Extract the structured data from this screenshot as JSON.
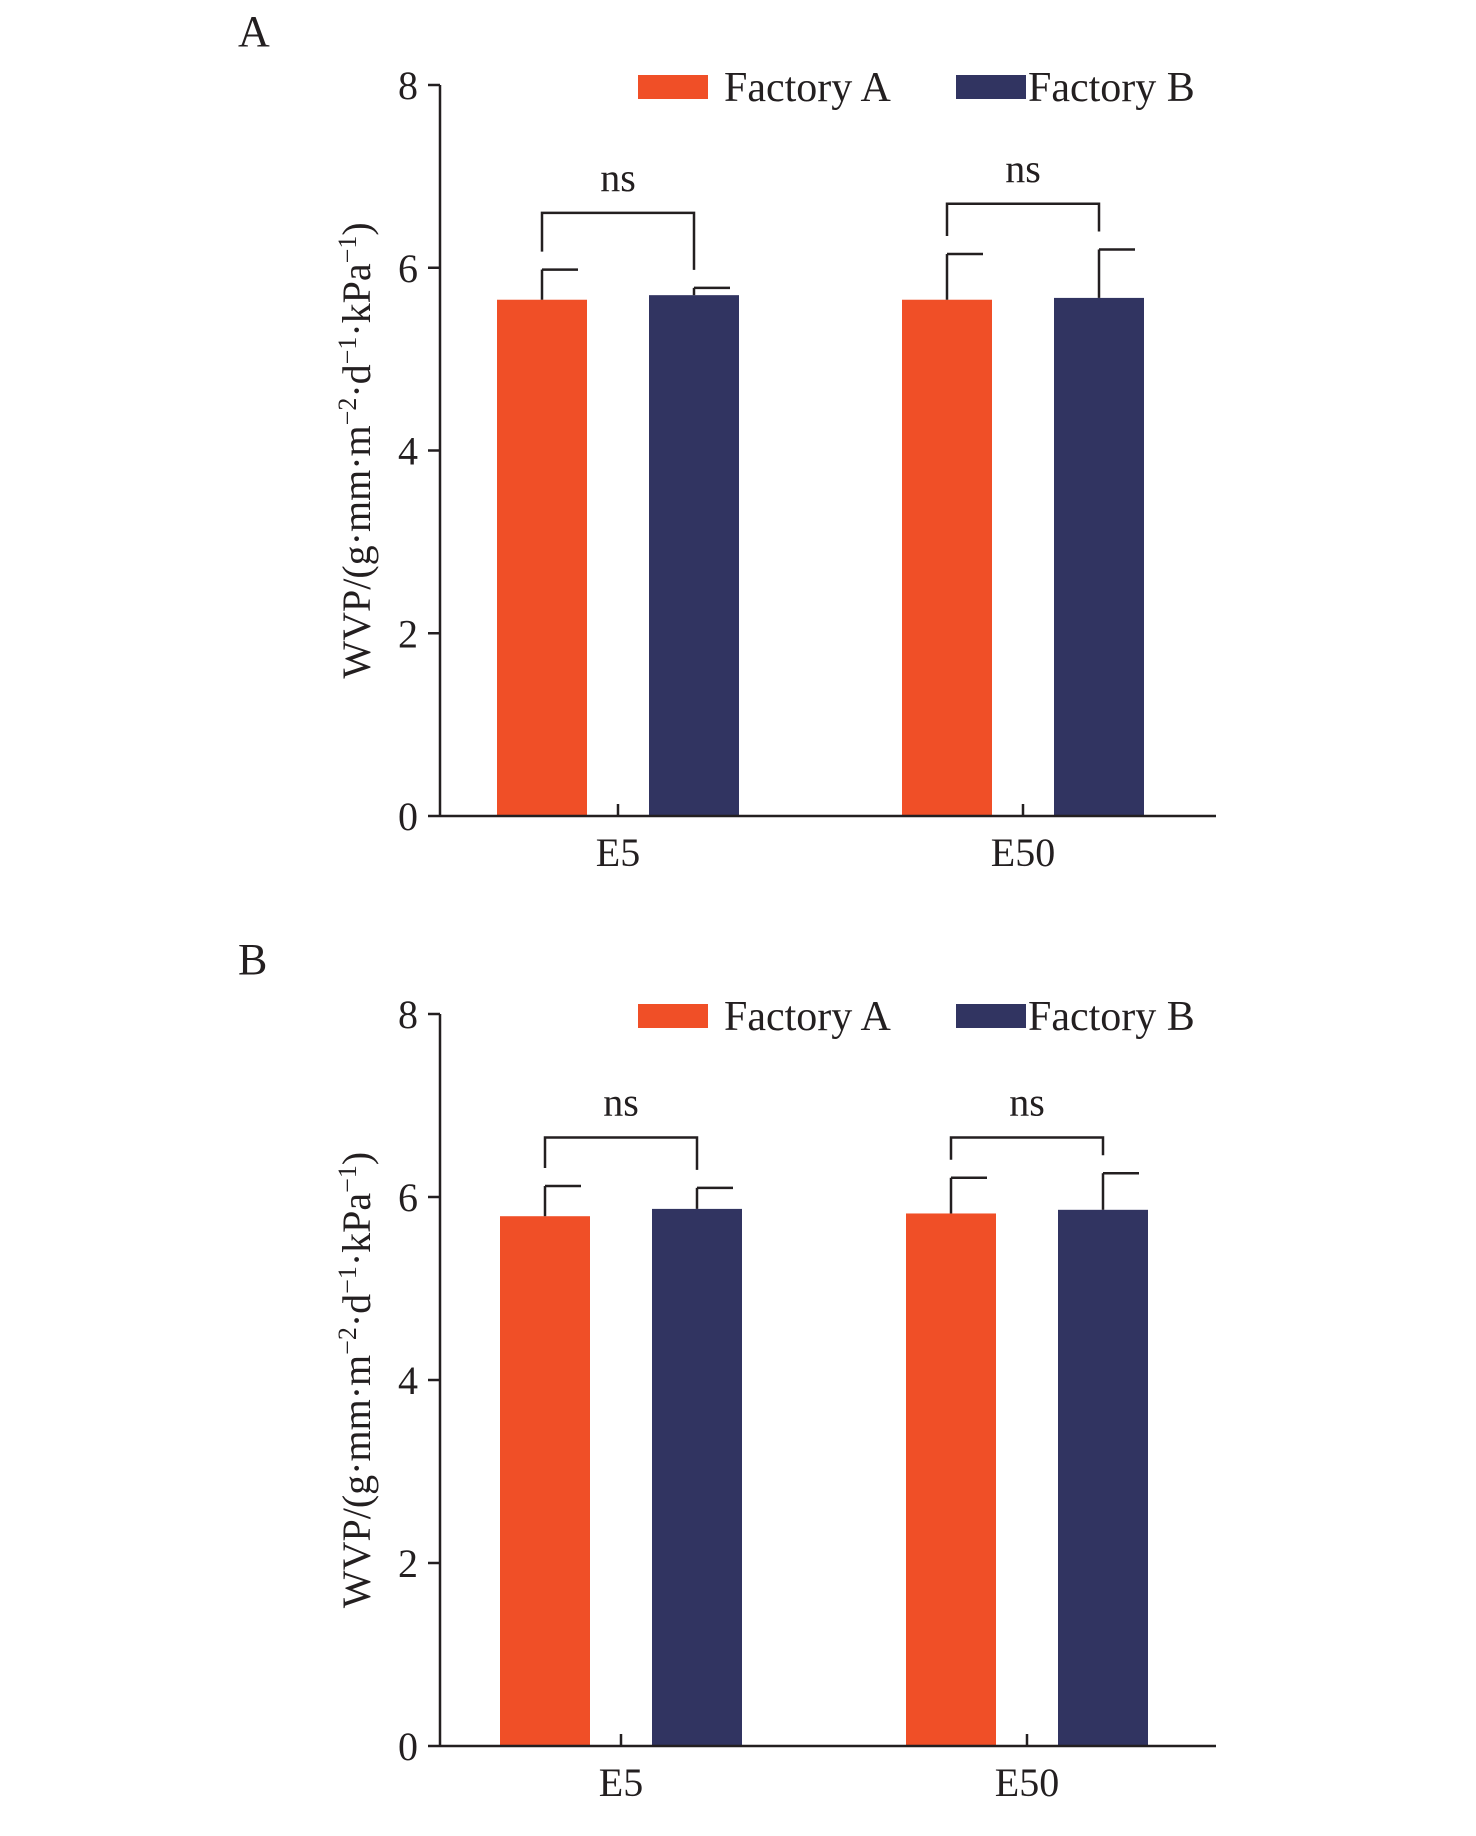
{
  "figure": {
    "colors": {
      "series_a": "#f04f27",
      "series_b": "#313461",
      "axis": "#231f20"
    }
  },
  "chart_data": [
    {
      "type": "bar",
      "panel_label": "A",
      "categories": [
        "E5",
        "E50"
      ],
      "series": [
        {
          "name": "Factory A",
          "values": [
            5.65,
            5.65
          ],
          "errors": [
            0.33,
            0.5
          ]
        },
        {
          "name": "Factory B",
          "values": [
            5.7,
            5.67
          ],
          "errors": [
            0.08,
            0.53
          ]
        }
      ],
      "ylabel": "WVP/(g·mm·m−2·d−1·kPa−1)",
      "ylabel_parts": [
        {
          "t": "WVP/(g·mm·m",
          "s": false
        },
        {
          "t": "−2",
          "s": true
        },
        {
          "t": "·d",
          "s": false
        },
        {
          "t": "−1",
          "s": true
        },
        {
          "t": "·kPa",
          "s": false
        },
        {
          "t": "−1",
          "s": true
        },
        {
          "t": ")",
          "s": false
        }
      ],
      "xlabel": "",
      "ylim": [
        0,
        8
      ],
      "yticks": [
        "0",
        "2",
        "4",
        "6",
        "8"
      ],
      "legend_position": "top-right",
      "annotations": [
        {
          "text": "ns",
          "category": "E5",
          "bracket_top": 6.6
        },
        {
          "text": "ns",
          "category": "E50",
          "bracket_top": 6.7
        }
      ]
    },
    {
      "type": "bar",
      "panel_label": "B",
      "categories": [
        "E5",
        "E50"
      ],
      "series": [
        {
          "name": "Factory A",
          "values": [
            5.79,
            5.82
          ],
          "errors": [
            0.33,
            0.39
          ]
        },
        {
          "name": "Factory B",
          "values": [
            5.87,
            5.86
          ],
          "errors": [
            0.23,
            0.4
          ]
        }
      ],
      "ylabel": "WVP/(g·mm·m−2·d−1·kPa−1)",
      "ylabel_parts": [
        {
          "t": "WVP/(g·mm·m",
          "s": false
        },
        {
          "t": "−2",
          "s": true
        },
        {
          "t": "·d",
          "s": false
        },
        {
          "t": "−1",
          "s": true
        },
        {
          "t": "·kPa",
          "s": false
        },
        {
          "t": "−1",
          "s": true
        },
        {
          "t": ")",
          "s": false
        }
      ],
      "xlabel": "",
      "ylim": [
        0,
        8
      ],
      "yticks": [
        "0",
        "2",
        "4",
        "6",
        "8"
      ],
      "legend_position": "top-right",
      "annotations": [
        {
          "text": "ns",
          "category": "E5",
          "bracket_top": 6.65
        },
        {
          "text": "ns",
          "category": "E50",
          "bracket_top": 6.65
        }
      ]
    }
  ]
}
